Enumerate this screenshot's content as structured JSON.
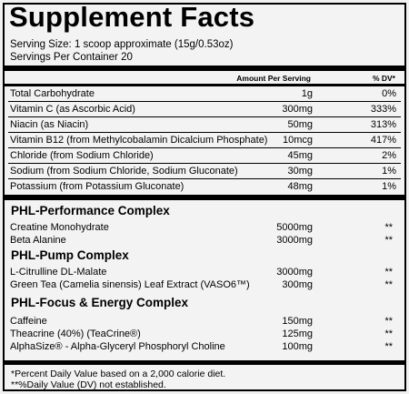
{
  "title": "Supplement Facts",
  "serving_size": "Serving Size: 1 scoop approximate (15g/0.53oz)",
  "servings_per_container": "Servings Per Container 20",
  "header": {
    "amount": "Amount Per Serving",
    "dv": "% DV*"
  },
  "nutrients": [
    {
      "name": "Total Carbohydrate",
      "amount": "1g",
      "dv": "0%"
    },
    {
      "name": "Vitamin C (as Ascorbic Acid)",
      "amount": "300mg",
      "dv": "333%"
    },
    {
      "name": "Niacin (as Niacin)",
      "amount": "50mg",
      "dv": "313%"
    },
    {
      "name": "Vitamin B12 (from Methylcobalamin Dicalcium Phosphate)",
      "amount": "10mcg",
      "dv": "417%"
    },
    {
      "name": "Chloride (from Sodium Chloride)",
      "amount": "45mg",
      "dv": "2%"
    },
    {
      "name": "Sodium (from Sodium Chloride, Sodium Gluconate)",
      "amount": "30mg",
      "dv": "1%"
    },
    {
      "name": "Potassium (from Potassium Gluconate)",
      "amount": "48mg",
      "dv": "1%"
    }
  ],
  "complexes": [
    {
      "title": "PHL-Performance Complex",
      "items": [
        {
          "name": "Creatine Monohydrate",
          "amount": "5000mg",
          "dv": "**"
        },
        {
          "name": "Beta Alanine",
          "amount": "3000mg",
          "dv": "**"
        }
      ]
    },
    {
      "title": "PHL-Pump Complex",
      "items": [
        {
          "name": "L-Citrulline DL-Malate",
          "amount": "3000mg",
          "dv": "**"
        },
        {
          "name": "Green Tea (Camelia sinensis) Leaf Extract (VASO6™)",
          "amount": "300mg",
          "dv": "**"
        }
      ]
    },
    {
      "title": "PHL-Focus & Energy Complex",
      "items": [
        {
          "name": "Caffeine",
          "amount": "150mg",
          "dv": "**"
        },
        {
          "name": "Theacrine (40%) (TeaCrine®)",
          "amount": "125mg",
          "dv": "**"
        },
        {
          "name": "AlphaSize® - Alpha-Glyceryl Phosphoryl Choline",
          "amount": "100mg",
          "dv": "**"
        }
      ]
    }
  ],
  "footnotes": [
    "*Percent Daily Value based on a 2,000 calorie diet.",
    "**%Daily Value (DV) not established."
  ]
}
